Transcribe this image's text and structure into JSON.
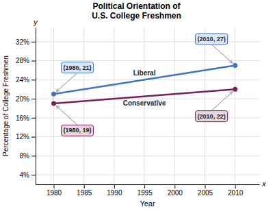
{
  "chart_data": {
    "type": "line",
    "title": "Political Orientation of\nU.S. College Freshmen",
    "x_label": "Year",
    "y_label": "Percentage of College Freshmen",
    "x_axis_letter": "x",
    "y_axis_letter": "y",
    "x": [
      1980,
      2010
    ],
    "series": [
      {
        "name": "Liberal",
        "color": "#4472C4",
        "marker": "circle",
        "values": [
          21,
          27
        ]
      },
      {
        "name": "Conservative",
        "color": "#7B2055",
        "marker": "circle",
        "values": [
          19,
          22
        ]
      }
    ],
    "annotations": [
      {
        "text": "(1980, 21)",
        "x": 1980,
        "y": 21
      },
      {
        "text": "(2010, 27)",
        "x": 2010,
        "y": 27
      },
      {
        "text": "(1980, 19)",
        "x": 1980,
        "y": 19
      },
      {
        "text": "(2010, 22)",
        "x": 2010,
        "y": 22
      }
    ],
    "xlim": [
      1977,
      2014
    ],
    "ylim": [
      2,
      35
    ],
    "xticks": [
      1980,
      1985,
      1990,
      1995,
      2000,
      2005,
      2010
    ],
    "yticks": [
      {
        "value": 4,
        "label": "4%"
      },
      {
        "value": 8,
        "label": "8%"
      },
      {
        "value": 12,
        "label": "12%"
      },
      {
        "value": 16,
        "label": "16%"
      },
      {
        "value": 20,
        "label": "20%"
      },
      {
        "value": 24,
        "label": "24%"
      },
      {
        "value": 28,
        "label": "28%"
      },
      {
        "value": 32,
        "label": "32%"
      }
    ],
    "grid": true
  }
}
